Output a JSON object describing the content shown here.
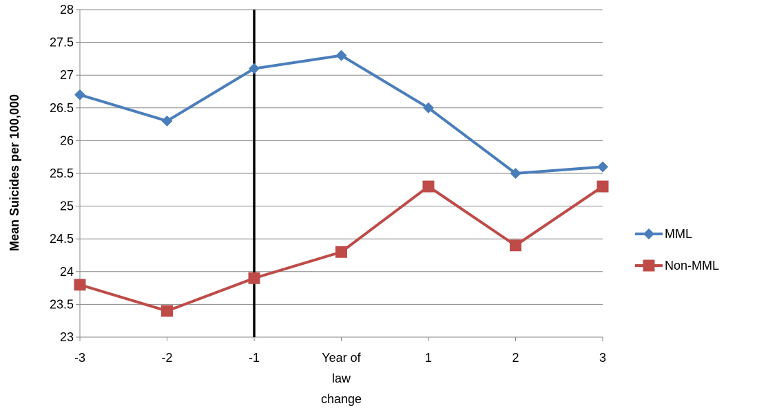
{
  "chart_data": {
    "type": "line",
    "title": "",
    "xlabel": "",
    "ylabel": "Mean Suicides per 100,000",
    "categories": [
      "-3",
      "-2",
      "-1",
      "Year of law change",
      "1",
      "2",
      "3"
    ],
    "category_label_lines": [
      [
        "-3"
      ],
      [
        "-2"
      ],
      [
        "-1"
      ],
      [
        "Year of",
        "law",
        "change"
      ],
      [
        "1"
      ],
      [
        "2"
      ],
      [
        "3"
      ]
    ],
    "ylim": [
      23,
      28
    ],
    "yticks": [
      23,
      23.5,
      24,
      24.5,
      25,
      25.5,
      26,
      26.5,
      27,
      27.5,
      28
    ],
    "grid": true,
    "legend_position": "right",
    "reference_line_category": "-1",
    "reference_line_color": "#000000",
    "series": [
      {
        "name": "MML",
        "values": [
          26.7,
          26.3,
          27.1,
          27.3,
          26.5,
          25.5,
          25.6
        ],
        "color": "#4a7ebb",
        "marker": "diamond"
      },
      {
        "name": "Non-MML",
        "values": [
          23.8,
          23.4,
          23.9,
          24.3,
          25.3,
          24.4,
          25.3
        ],
        "color": "#be4b48",
        "marker": "square"
      }
    ]
  }
}
